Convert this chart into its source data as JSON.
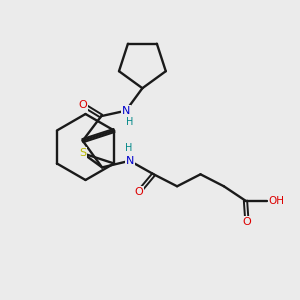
{
  "background_color": "#ebebeb",
  "bond_color": "#1a1a1a",
  "atom_colors": {
    "O": "#dd0000",
    "N": "#0000cc",
    "S": "#b8b800",
    "H": "#008888",
    "C": "#1a1a1a"
  },
  "fig_size": [
    3.0,
    3.0
  ],
  "dpi": 100
}
